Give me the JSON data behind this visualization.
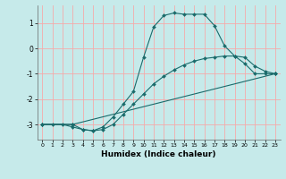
{
  "xlabel": "Humidex (Indice chaleur)",
  "background_color": "#c6eaea",
  "grid_color": "#f5aaaa",
  "line_color": "#1a6b6b",
  "xlim": [
    -0.5,
    23.5
  ],
  "ylim": [
    -3.6,
    1.7
  ],
  "yticks": [
    1,
    0,
    -1,
    -2,
    -3
  ],
  "xticks": [
    0,
    1,
    2,
    3,
    4,
    5,
    6,
    7,
    8,
    9,
    10,
    11,
    12,
    13,
    14,
    15,
    16,
    17,
    18,
    19,
    20,
    21,
    22,
    23
  ],
  "line1_x": [
    0,
    1,
    2,
    3,
    4,
    5,
    6,
    7,
    8,
    9,
    10,
    11,
    12,
    13,
    14,
    15,
    16,
    17,
    18,
    19,
    20,
    21,
    22,
    23
  ],
  "line1_y": [
    -3.0,
    -3.0,
    -3.0,
    -3.1,
    -3.2,
    -3.25,
    -3.1,
    -2.7,
    -2.2,
    -1.7,
    -0.35,
    0.85,
    1.3,
    1.4,
    1.35,
    1.35,
    1.35,
    0.9,
    0.1,
    -0.3,
    -0.6,
    -1.0,
    -1.0,
    -1.0
  ],
  "line2_x": [
    0,
    3,
    4,
    5,
    6,
    7,
    8,
    9,
    10,
    11,
    12,
    13,
    14,
    15,
    16,
    17,
    18,
    19,
    20,
    21,
    22,
    23
  ],
  "line2_y": [
    -3.0,
    -3.0,
    -3.2,
    -3.25,
    -3.2,
    -3.0,
    -2.6,
    -2.2,
    -1.8,
    -1.4,
    -1.1,
    -0.85,
    -0.65,
    -0.5,
    -0.4,
    -0.35,
    -0.3,
    -0.3,
    -0.35,
    -0.7,
    -0.9,
    -1.0
  ],
  "line3_x": [
    0,
    3,
    23
  ],
  "line3_y": [
    -3.0,
    -3.0,
    -1.0
  ]
}
